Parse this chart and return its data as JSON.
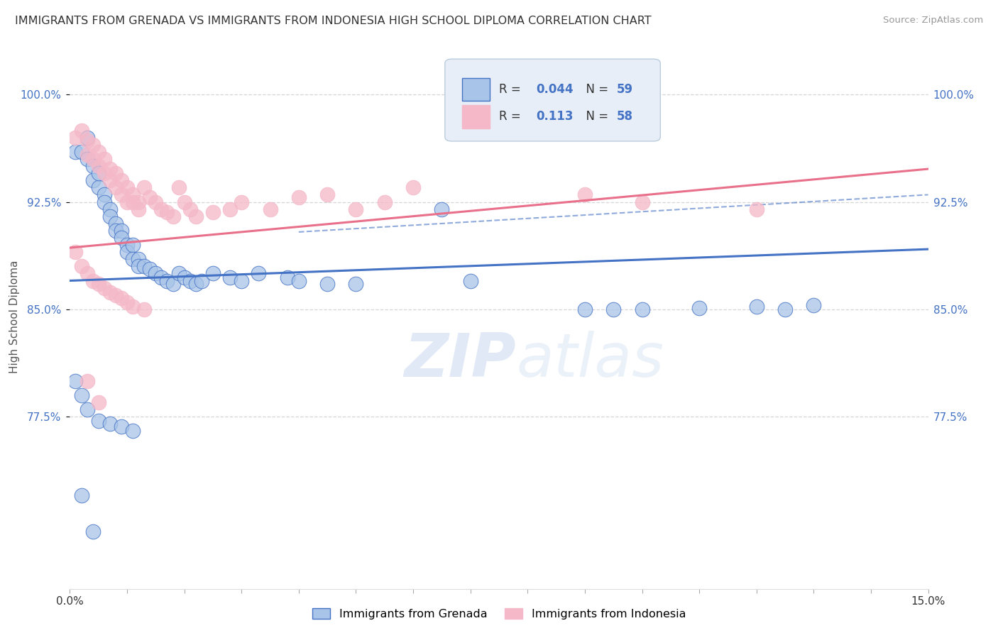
{
  "title": "IMMIGRANTS FROM GRENADA VS IMMIGRANTS FROM INDONESIA HIGH SCHOOL DIPLOMA CORRELATION CHART",
  "source": "Source: ZipAtlas.com",
  "ylabel": "High School Diploma",
  "xmin": 0.0,
  "xmax": 0.15,
  "ymin": 0.655,
  "ymax": 1.035,
  "yticks": [
    0.775,
    0.85,
    0.925,
    1.0
  ],
  "ytick_labels": [
    "77.5%",
    "85.0%",
    "92.5%",
    "100.0%"
  ],
  "color_grenada": "#A8C4E8",
  "color_indonesia": "#F4B8C8",
  "color_grenada_line": "#4472C4",
  "color_indonesia_line": "#E8708A",
  "background_color": "#FFFFFF",
  "grid_color": "#CCCCCC",
  "legend_box_color": "#E8EEF8",
  "legend_border_color": "#BBCCDD",
  "grenada_scatter_x": [
    0.001,
    0.002,
    0.003,
    0.003,
    0.004,
    0.004,
    0.005,
    0.005,
    0.006,
    0.006,
    0.007,
    0.007,
    0.008,
    0.008,
    0.009,
    0.009,
    0.01,
    0.01,
    0.011,
    0.011,
    0.012,
    0.012,
    0.013,
    0.014,
    0.015,
    0.016,
    0.017,
    0.018,
    0.019,
    0.02,
    0.021,
    0.022,
    0.023,
    0.025,
    0.028,
    0.03,
    0.033,
    0.038,
    0.04,
    0.045,
    0.05,
    0.065,
    0.07,
    0.09,
    0.095,
    0.1,
    0.11,
    0.12,
    0.125,
    0.13,
    0.001,
    0.002,
    0.003,
    0.005,
    0.007,
    0.009,
    0.011,
    0.002,
    0.004
  ],
  "grenada_scatter_y": [
    0.96,
    0.96,
    0.97,
    0.955,
    0.94,
    0.95,
    0.935,
    0.945,
    0.93,
    0.925,
    0.92,
    0.915,
    0.91,
    0.905,
    0.905,
    0.9,
    0.895,
    0.89,
    0.895,
    0.885,
    0.885,
    0.88,
    0.88,
    0.878,
    0.875,
    0.872,
    0.87,
    0.868,
    0.875,
    0.872,
    0.87,
    0.868,
    0.87,
    0.875,
    0.872,
    0.87,
    0.875,
    0.872,
    0.87,
    0.868,
    0.868,
    0.92,
    0.87,
    0.85,
    0.85,
    0.85,
    0.851,
    0.852,
    0.85,
    0.853,
    0.8,
    0.79,
    0.78,
    0.772,
    0.77,
    0.768,
    0.765,
    0.72,
    0.695
  ],
  "indonesia_scatter_x": [
    0.001,
    0.002,
    0.003,
    0.003,
    0.004,
    0.004,
    0.005,
    0.005,
    0.006,
    0.006,
    0.007,
    0.007,
    0.008,
    0.008,
    0.009,
    0.009,
    0.01,
    0.01,
    0.011,
    0.011,
    0.012,
    0.012,
    0.013,
    0.014,
    0.015,
    0.016,
    0.017,
    0.018,
    0.019,
    0.02,
    0.021,
    0.022,
    0.025,
    0.028,
    0.03,
    0.035,
    0.04,
    0.045,
    0.05,
    0.055,
    0.06,
    0.09,
    0.1,
    0.12,
    0.001,
    0.002,
    0.003,
    0.004,
    0.005,
    0.006,
    0.007,
    0.008,
    0.009,
    0.01,
    0.011,
    0.013,
    0.003,
    0.005
  ],
  "indonesia_scatter_y": [
    0.97,
    0.975,
    0.968,
    0.958,
    0.965,
    0.955,
    0.96,
    0.95,
    0.955,
    0.945,
    0.948,
    0.94,
    0.945,
    0.935,
    0.94,
    0.93,
    0.935,
    0.925,
    0.93,
    0.925,
    0.925,
    0.92,
    0.935,
    0.928,
    0.925,
    0.92,
    0.918,
    0.915,
    0.935,
    0.925,
    0.92,
    0.915,
    0.918,
    0.92,
    0.925,
    0.92,
    0.928,
    0.93,
    0.92,
    0.925,
    0.935,
    0.93,
    0.925,
    0.92,
    0.89,
    0.88,
    0.875,
    0.87,
    0.868,
    0.865,
    0.862,
    0.86,
    0.858,
    0.855,
    0.852,
    0.85,
    0.8,
    0.785
  ],
  "grenada_trend_x": [
    0.0,
    0.15
  ],
  "grenada_trend_y": [
    0.87,
    0.892
  ],
  "indonesia_trend_x": [
    0.0,
    0.15
  ],
  "indonesia_trend_y": [
    0.893,
    0.948
  ],
  "dashed_trend_x": [
    0.04,
    0.15
  ],
  "dashed_trend_y": [
    0.904,
    0.93
  ]
}
